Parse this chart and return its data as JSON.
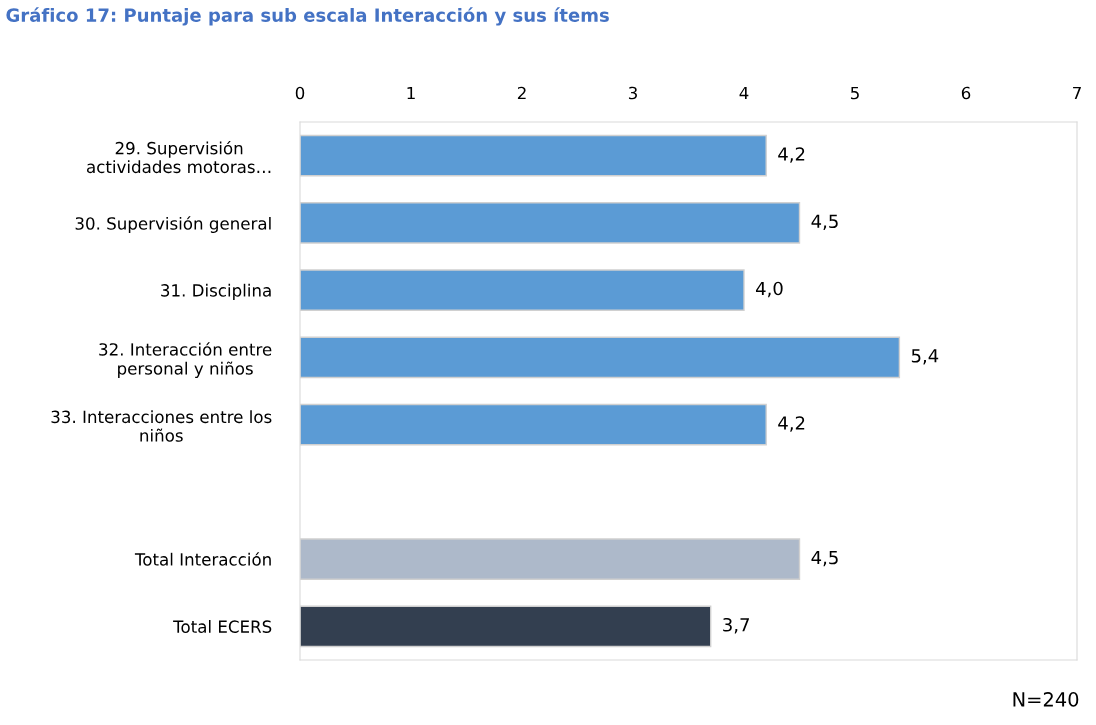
{
  "chart_data": {
    "type": "bar",
    "orientation": "horizontal",
    "title": "Gráfico 17: Puntaje para sub escala Interacción y sus ítems",
    "categories": [
      "29. Supervisión\nactividades motoras…",
      "30. Supervisión general",
      "31. Disciplina",
      "32. Interacción entre\npersonal y niños",
      "33. Interacciones entre los\nniños",
      null,
      "Total Interacción",
      "Total ECERS"
    ],
    "values": [
      4.2,
      4.5,
      4.0,
      5.4,
      4.2,
      null,
      4.5,
      3.7
    ],
    "value_labels": [
      "4,2",
      "4,5",
      "4,0",
      "5,4",
      "4,2",
      null,
      "4,5",
      "3,7"
    ],
    "colors": [
      "#5b9bd5",
      "#5b9bd5",
      "#5b9bd5",
      "#5b9bd5",
      "#5b9bd5",
      null,
      "#adb9ca",
      "#333f50"
    ],
    "xlim": [
      0,
      7
    ],
    "xticks": [
      0,
      1,
      2,
      3,
      4,
      5,
      6,
      7
    ],
    "grid": false,
    "annotations": [
      "N=240"
    ]
  }
}
